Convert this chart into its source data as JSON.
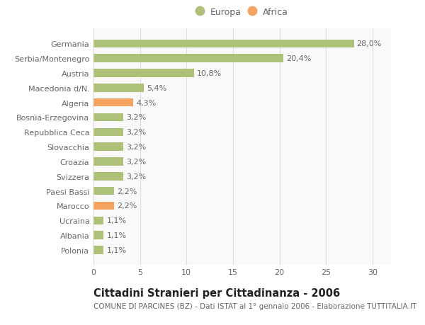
{
  "categories": [
    "Polonia",
    "Albania",
    "Ucraina",
    "Marocco",
    "Paesi Bassi",
    "Svizzera",
    "Croazia",
    "Slovacchia",
    "Repubblica Ceca",
    "Bosnia-Erzegovina",
    "Algeria",
    "Macedonia d/N.",
    "Austria",
    "Serbia/Montenegro",
    "Germania"
  ],
  "values": [
    1.1,
    1.1,
    1.1,
    2.2,
    2.2,
    3.2,
    3.2,
    3.2,
    3.2,
    3.2,
    4.3,
    5.4,
    10.8,
    20.4,
    28.0
  ],
  "labels": [
    "1,1%",
    "1,1%",
    "1,1%",
    "2,2%",
    "2,2%",
    "3,2%",
    "3,2%",
    "3,2%",
    "3,2%",
    "3,2%",
    "4,3%",
    "5,4%",
    "10,8%",
    "20,4%",
    "28,0%"
  ],
  "colors": [
    "#adc178",
    "#adc178",
    "#adc178",
    "#f4a460",
    "#adc178",
    "#adc178",
    "#adc178",
    "#adc178",
    "#adc178",
    "#adc178",
    "#f4a460",
    "#adc178",
    "#adc178",
    "#adc178",
    "#adc178"
  ],
  "europa_color": "#adc178",
  "africa_color": "#f4a460",
  "background_color": "#ffffff",
  "plot_bg_color": "#f9f9f9",
  "grid_color": "#dddddd",
  "title": "Cittadini Stranieri per Cittadinanza - 2006",
  "subtitle": "COMUNE DI PARCINES (BZ) - Dati ISTAT al 1° gennaio 2006 - Elaborazione TUTTITALIA.IT",
  "xlim": [
    0,
    32
  ],
  "xticks": [
    0,
    5,
    10,
    15,
    20,
    25,
    30
  ],
  "bar_height": 0.55,
  "label_fontsize": 8,
  "tick_fontsize": 8,
  "title_fontsize": 10.5,
  "subtitle_fontsize": 7.5,
  "legend_fontsize": 9,
  "text_color": "#666666",
  "title_color": "#222222"
}
